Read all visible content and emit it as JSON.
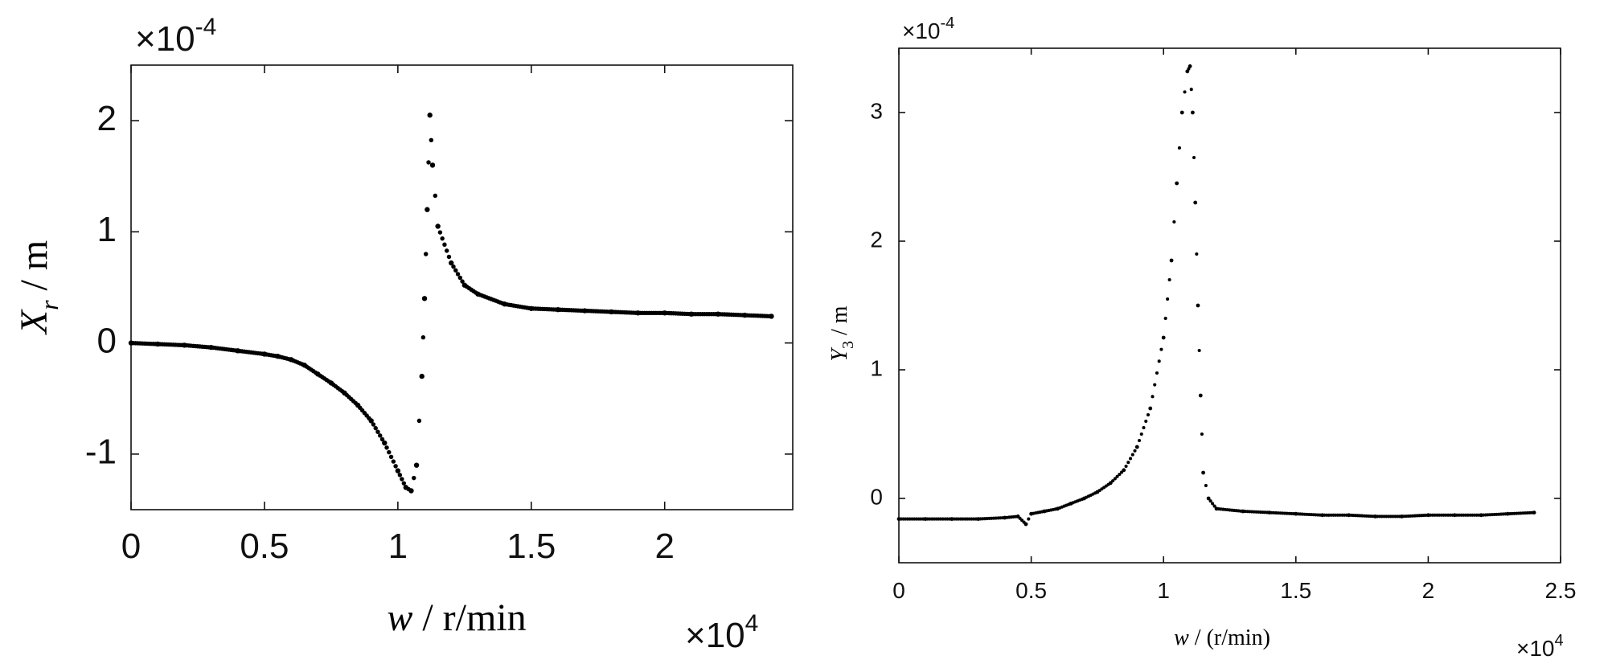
{
  "chart_data": [
    {
      "type": "scatter",
      "xlabel_var": "w",
      "xlabel_rest": " / r/min",
      "ylabel_var": "X",
      "ylabel_sub": "r",
      "ylabel_rest": " / m",
      "x_exponent_label": "×10",
      "x_exponent_power": "4",
      "y_exponent_label": "×10",
      "y_exponent_power": "-4",
      "xlim": [
        0,
        2.48
      ],
      "ylim": [
        -1.5,
        2.5
      ],
      "xticks": [
        0,
        0.5,
        1,
        1.5,
        2
      ],
      "xtick_labels": [
        "0",
        "0.5",
        "1",
        "1.5",
        "2"
      ],
      "yticks": [
        -1,
        0,
        1,
        2
      ],
      "ytick_labels": [
        "-1",
        "0",
        "1",
        "2"
      ],
      "series": [
        {
          "x": [
            0,
            0.1,
            0.2,
            0.3,
            0.4,
            0.5,
            0.55,
            0.6,
            0.65,
            0.7,
            0.75,
            0.8,
            0.85,
            0.9,
            0.95,
            1.0,
            1.03,
            1.05,
            1.07,
            1.09,
            1.1,
            1.11,
            1.12,
            1.13,
            1.15,
            1.2,
            1.25,
            1.3,
            1.4,
            1.5,
            1.6,
            1.7,
            1.8,
            1.9,
            2.0,
            2.1,
            2.2,
            2.3,
            2.4
          ],
          "y": [
            0,
            -0.01,
            -0.02,
            -0.04,
            -0.07,
            -0.1,
            -0.12,
            -0.15,
            -0.2,
            -0.28,
            -0.36,
            -0.45,
            -0.56,
            -0.7,
            -0.9,
            -1.15,
            -1.3,
            -1.33,
            -1.1,
            -0.3,
            0.4,
            1.2,
            2.05,
            1.6,
            1.05,
            0.72,
            0.52,
            0.44,
            0.35,
            0.31,
            0.3,
            0.29,
            0.28,
            0.27,
            0.27,
            0.26,
            0.26,
            0.25,
            0.24
          ]
        }
      ]
    },
    {
      "type": "scatter",
      "xlabel_var": "w",
      "xlabel_rest": " / (r/min)",
      "ylabel_var": "Y",
      "ylabel_sub": "3",
      "ylabel_rest": " / m",
      "x_exponent_label": "×10",
      "x_exponent_power": "4",
      "y_exponent_label": "×10",
      "y_exponent_power": "-4",
      "xlim": [
        0,
        2.5
      ],
      "ylim": [
        -0.5,
        3.5
      ],
      "xticks": [
        0,
        0.5,
        1,
        1.5,
        2,
        2.5
      ],
      "xtick_labels": [
        "0",
        "0.5",
        "1",
        "1.5",
        "2",
        "2.5"
      ],
      "yticks": [
        0,
        1,
        2,
        3
      ],
      "ytick_labels": [
        "0",
        "1",
        "2",
        "3"
      ],
      "series": [
        {
          "x": [
            0,
            0.1,
            0.2,
            0.3,
            0.4,
            0.45,
            0.48,
            0.5,
            0.55,
            0.6,
            0.65,
            0.7,
            0.75,
            0.8,
            0.85,
            0.9,
            0.95,
            1.0,
            1.03,
            1.05,
            1.07,
            1.09,
            1.1,
            1.11,
            1.12,
            1.13,
            1.14,
            1.15,
            1.17,
            1.2,
            1.3,
            1.4,
            1.5,
            1.6,
            1.7,
            1.8,
            1.9,
            2.0,
            2.1,
            2.2,
            2.3,
            2.4
          ],
          "y": [
            -0.16,
            -0.16,
            -0.16,
            -0.16,
            -0.15,
            -0.14,
            -0.2,
            -0.12,
            -0.1,
            -0.08,
            -0.04,
            0.0,
            0.05,
            0.12,
            0.22,
            0.4,
            0.7,
            1.25,
            1.85,
            2.45,
            3.0,
            3.32,
            3.36,
            3.0,
            2.3,
            1.5,
            0.8,
            0.2,
            0.0,
            -0.08,
            -0.1,
            -0.11,
            -0.12,
            -0.13,
            -0.13,
            -0.14,
            -0.14,
            -0.13,
            -0.13,
            -0.13,
            -0.12,
            -0.11
          ]
        }
      ]
    }
  ]
}
